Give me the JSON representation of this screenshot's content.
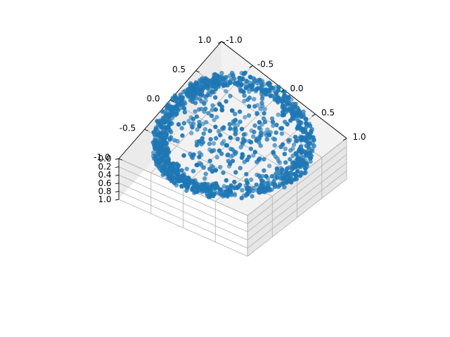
{
  "chart_data": {
    "type": "scatter",
    "projection": "3d",
    "title": "",
    "xlabel": "",
    "ylabel": "",
    "zlabel": "",
    "marker_color": "#1f77b4",
    "pane_color": "#f2f2f2",
    "grid": true,
    "xlim": [
      -1.0,
      1.0
    ],
    "ylim": [
      -1.0,
      1.0
    ],
    "zlim": [
      0.0,
      1.0
    ],
    "x_ticks": [
      "-1.0",
      "-0.5",
      "0.0",
      "0.5",
      "1.0"
    ],
    "y_ticks": [
      "1.0",
      "0.5",
      "0.0",
      "-0.5",
      "-1.0"
    ],
    "z_ticks": [
      "0.0",
      "0.2",
      "0.4",
      "0.6",
      "0.8",
      "1.0"
    ],
    "point_count": 1600,
    "distribution": "points on a unit circle/sphere shell of radius 1, dense around the rim with sparse interior points; z clustered near 0"
  }
}
